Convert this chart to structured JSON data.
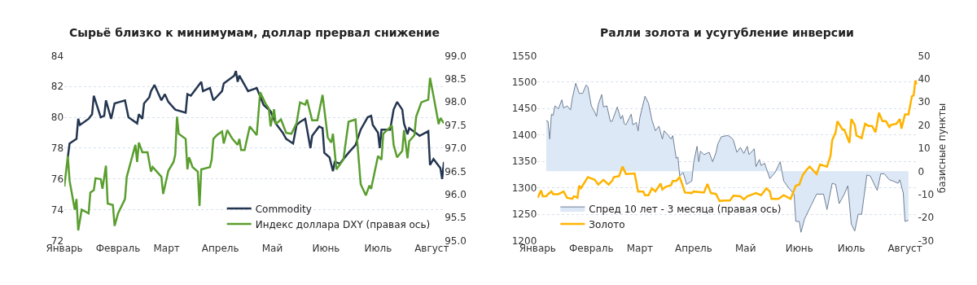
{
  "chart_data": [
    {
      "type": "line",
      "title": "Сырьё близко к минимумам, доллар прервал снижение",
      "categories": [
        "Январь",
        null,
        null,
        null,
        null,
        null,
        null,
        null,
        null,
        null,
        null,
        null,
        null,
        null,
        null,
        null,
        null,
        null,
        null,
        null,
        null,
        null,
        null,
        null,
        null,
        null,
        null,
        null,
        null,
        null,
        null,
        "Февраль",
        null,
        null,
        null,
        null,
        null,
        null,
        null,
        null,
        null,
        null,
        null,
        null,
        null,
        null,
        null,
        null,
        null,
        null,
        null,
        null,
        null,
        null,
        null,
        null,
        null,
        null,
        null,
        "Март",
        null,
        null,
        null,
        null,
        null,
        null,
        null,
        null,
        null,
        null,
        null,
        null,
        null,
        null,
        null,
        null,
        null,
        null,
        null,
        null,
        null,
        null,
        null,
        null,
        null,
        null,
        null,
        null,
        null,
        null,
        "Апрель",
        null,
        null,
        null,
        null,
        null,
        null,
        null,
        null,
        null,
        null,
        null,
        null,
        null,
        null,
        null,
        null,
        null,
        null,
        null,
        null,
        null,
        null,
        null,
        null,
        null,
        null,
        null,
        null,
        null,
        "Май",
        null,
        null,
        null,
        null,
        null,
        null,
        null,
        null,
        null,
        null,
        null,
        null,
        null,
        null,
        null,
        null,
        null,
        null,
        null,
        null,
        null,
        null,
        null,
        null,
        null,
        null,
        null,
        null,
        null,
        null,
        "Июнь",
        null,
        null,
        null,
        null,
        null,
        null,
        null,
        null,
        null,
        null,
        null,
        null,
        null,
        null,
        null,
        null,
        null,
        null,
        null,
        null,
        null,
        null,
        null,
        null,
        null,
        null,
        null,
        null,
        null,
        "Июль",
        null,
        null,
        null,
        null,
        null,
        null,
        null,
        null,
        null,
        null,
        null,
        null,
        null,
        null,
        null,
        null,
        null,
        null,
        null,
        null,
        null,
        null,
        null,
        null,
        null,
        null,
        null,
        null,
        null,
        null,
        "Август",
        null,
        null,
        null,
        null,
        null,
        null,
        null
      ],
      "ylim": [
        72,
        84
      ],
      "yticks": [
        72,
        74,
        76,
        78,
        80,
        82,
        84
      ],
      "y2lim": [
        95,
        99
      ],
      "y2ticks": [
        {
          "value": 95,
          "label": "95.0"
        },
        {
          "value": 95.5,
          "label": "95.5"
        },
        {
          "value": 96,
          "label": "96.0"
        },
        {
          "value": 96.5,
          "label": "96.5"
        },
        {
          "value": 97,
          "label": "97.0"
        },
        {
          "value": 97.5,
          "label": "97.5"
        },
        {
          "value": 98,
          "label": "98.0"
        },
        {
          "value": 98.5,
          "label": "98.5"
        },
        {
          "value": 99,
          "label": "99.0"
        }
      ],
      "grid": "y",
      "legend": "bottom right",
      "marker": "none",
      "line_style": "solid",
      "series": [
        {
          "name": "Commodity",
          "color": "#243550",
          "values": [
            null,
            null,
            77.4,
            78.3,
            null,
            null,
            null,
            78.6,
            79.9,
            79.5,
            null,
            null,
            null,
            null,
            79.9,
            null,
            80.2,
            81.4,
            null,
            null,
            null,
            80.0,
            null,
            80.1,
            81.1,
            null,
            null,
            79.9,
            null,
            80.9,
            null,
            null,
            81.0,
            null,
            null,
            81.1,
            null,
            80.0,
            null,
            null,
            null,
            null,
            79.6,
            80.2,
            null,
            79.9,
            80.9,
            null,
            null,
            81.3,
            81.7,
            null,
            82.1,
            null,
            null,
            null,
            81.1,
            null,
            81.5,
            null,
            81.0,
            null,
            null,
            null,
            80.5,
            null,
            null,
            null,
            null,
            null,
            80.3,
            81.5,
            null,
            81.4,
            null,
            null,
            null,
            null,
            null,
            82.3,
            81.7,
            null,
            null,
            null,
            81.9,
            null,
            81.1,
            null,
            null,
            null,
            null,
            81.7,
            82.2,
            null,
            null,
            null,
            null,
            null,
            82.7,
            83.0,
            82.3,
            82.7,
            null,
            null,
            null,
            null,
            81.7,
            null,
            null,
            null,
            null,
            81.9,
            null,
            null,
            null,
            80.8,
            null,
            null,
            null,
            80.4,
            null,
            null,
            79.6,
            null,
            null,
            null,
            79.0,
            null,
            78.6,
            null,
            null,
            null,
            78.3,
            null,
            79.5,
            null,
            79.7,
            null,
            null,
            79.9,
            null,
            null,
            78.0,
            78.8,
            null,
            null,
            null,
            79.4,
            null,
            79.3,
            77.7,
            null,
            null,
            77.4,
            null,
            76.5,
            77.1,
            null,
            null,
            77.0,
            null,
            null,
            null,
            null,
            77.7,
            null,
            null,
            null,
            78.2,
            null,
            null,
            79.2,
            null,
            null,
            null,
            80.0,
            null,
            80.1,
            79.5,
            null,
            null,
            79.0,
            78.0,
            79.2,
            null,
            null,
            null,
            null,
            79.2,
            null,
            80.5,
            null,
            81.0,
            null,
            null,
            80.5,
            79.6,
            null,
            78.9,
            79.3,
            null,
            null,
            null,
            null,
            null,
            78.8,
            null,
            null,
            null,
            null,
            79.1,
            76.9,
            null,
            77.3,
            null,
            null,
            null,
            76.7,
            76.0,
            77.1
          ]
        },
        {
          "name": "Индекс доллара DXY (правая ось)",
          "color": "#5a9e2f",
          "axis": "y2",
          "values": [
            96.17,
            null,
            96.83,
            96.3,
            null,
            null,
            95.67,
            95.9,
            95.22,
            null,
            95.67,
            null,
            null,
            null,
            95.59,
            96.04,
            null,
            96.09,
            96.35,
            null,
            null,
            96.33,
            96.12,
            null,
            96.62,
            95.8,
            null,
            null,
            95.77,
            95.32,
            null,
            95.59,
            null,
            null,
            null,
            95.9,
            96.38,
            null,
            null,
            null,
            null,
            97.07,
            96.7,
            97.12,
            null,
            96.91,
            null,
            null,
            96.91,
            null,
            96.49,
            96.59,
            null,
            null,
            null,
            null,
            96.38,
            96.01,
            96.17,
            null,
            96.51,
            null,
            null,
            96.7,
            96.86,
            97.68,
            97.31,
            null,
            null,
            null,
            97.2,
            96.54,
            96.8,
            null,
            96.59,
            null,
            null,
            96.49,
            95.75,
            96.54,
            null,
            null,
            null,
            null,
            96.59,
            96.75,
            97.2,
            null,
            97.28,
            null,
            null,
            97.36,
            97.1,
            null,
            97.39,
            null,
            null,
            97.2,
            null,
            null,
            97.07,
            97.2,
            96.96,
            null,
            96.96,
            null,
            null,
            97.47,
            null,
            null,
            null,
            97.28,
            null,
            98.21,
            null,
            null,
            97.97,
            null,
            97.86,
            97.47,
            null,
            97.84,
            97.52,
            null,
            null,
            97.62,
            null,
            null,
            97.33,
            null,
            null,
            97.31,
            null,
            null,
            97.54,
            null,
            97.99,
            null,
            null,
            97.94,
            98.05,
            null,
            null,
            97.6,
            null,
            null,
            97.6,
            null,
            null,
            98.15,
            null,
            null,
            97.23,
            null,
            97.12,
            97.31,
            null,
            96.54,
            null,
            null,
            null,
            96.75,
            null,
            null,
            97.57,
            null,
            null,
            null,
            97.62,
            null,
            null,
            96.22,
            null,
            null,
            95.98,
            null,
            96.19,
            96.12,
            null,
            null,
            null,
            96.83,
            null,
            96.75,
            97.31,
            null,
            null,
            null,
            null,
            97.49,
            97.07,
            null,
            96.8,
            null,
            null,
            96.94,
            97.39,
            null,
            96.78,
            97.15,
            null,
            null,
            97.28,
            97.68,
            null,
            null,
            97.99,
            null,
            null,
            null,
            98.05,
            98.52,
            null,
            98.13,
            null,
            null,
            97.52,
            97.65,
            null,
            97.54
          ]
        }
      ]
    },
    {
      "type": "line",
      "title": "Ралли золота и усугубление инверсии",
      "y2label": "базисные пункты",
      "categories": [
        "Январь",
        null,
        null,
        null,
        null,
        null,
        null,
        null,
        null,
        null,
        null,
        null,
        null,
        null,
        null,
        null,
        null,
        null,
        null,
        null,
        null,
        null,
        null,
        null,
        null,
        null,
        null,
        null,
        null,
        null,
        null,
        "Февраль",
        null,
        null,
        null,
        null,
        null,
        null,
        null,
        null,
        null,
        null,
        null,
        null,
        null,
        null,
        null,
        null,
        null,
        null,
        null,
        null,
        null,
        null,
        null,
        null,
        null,
        null,
        null,
        "Март",
        null,
        null,
        null,
        null,
        null,
        null,
        null,
        null,
        null,
        null,
        null,
        null,
        null,
        null,
        null,
        null,
        null,
        null,
        null,
        null,
        null,
        null,
        null,
        null,
        null,
        null,
        null,
        null,
        null,
        null,
        "Апрель",
        null,
        null,
        null,
        null,
        null,
        null,
        null,
        null,
        null,
        null,
        null,
        null,
        null,
        null,
        null,
        null,
        null,
        null,
        null,
        null,
        null,
        null,
        null,
        null,
        null,
        null,
        null,
        null,
        null,
        "Май",
        null,
        null,
        null,
        null,
        null,
        null,
        null,
        null,
        null,
        null,
        null,
        null,
        null,
        null,
        null,
        null,
        null,
        null,
        null,
        null,
        null,
        null,
        null,
        null,
        null,
        null,
        null,
        null,
        null,
        null,
        "Июнь",
        null,
        null,
        null,
        null,
        null,
        null,
        null,
        null,
        null,
        null,
        null,
        null,
        null,
        null,
        null,
        null,
        null,
        null,
        null,
        null,
        null,
        null,
        null,
        null,
        null,
        null,
        null,
        null,
        null,
        "Июль",
        null,
        null,
        null,
        null,
        null,
        null,
        null,
        null,
        null,
        null,
        null,
        null,
        null,
        null,
        null,
        null,
        null,
        null,
        null,
        null,
        null,
        null,
        null,
        null,
        null,
        null,
        null,
        null,
        null,
        null,
        "Август",
        null,
        null,
        null,
        null,
        null,
        null,
        null
      ],
      "ylim": [
        1200,
        1550
      ],
      "yticks": [
        1200,
        1250,
        1300,
        1350,
        1400,
        1450,
        1500,
        1550
      ],
      "y2lim": [
        -30,
        50
      ],
      "y2ticks": [
        -30,
        -20,
        -10,
        0,
        10,
        20,
        30,
        40,
        50
      ],
      "grid": "y",
      "legend": "bottom left",
      "marker": "none",
      "line_style": "solid",
      "series": [
        {
          "name": "Спред 10 лет - 3 месяца (правая ось)",
          "type": "area",
          "color": "#dce8f5",
          "axis": "y2",
          "values": [
            null,
            null,
            null,
            null,
            null,
            21.8,
            21.6,
            13.9,
            24.7,
            24.2,
            28.3,
            null,
            27.0,
            null,
            30.9,
            27.3,
            null,
            28.3,
            null,
            26.5,
            31.4,
            null,
            38.1,
            null,
            33.7,
            null,
            33.7,
            null,
            37.3,
            36.6,
            null,
            28.3,
            null,
            25.5,
            23.7,
            28.9,
            null,
            33.2,
            27.8,
            null,
            28.3,
            null,
            21.6,
            21.6,
            null,
            null,
            27.8,
            null,
            22.6,
            24.2,
            20.6,
            20.1,
            null,
            null,
            24.7,
            20.1,
            null,
            21.1,
            17.5,
            23.2,
            null,
            null,
            32.5,
            null,
            29.4,
            null,
            22.1,
            null,
            17.5,
            null,
            19.5,
            null,
            13.9,
            17.5,
            null,
            15.9,
            null,
            13.9,
            15.4,
            null,
            5.6,
            6.1,
            -2.1,
            null,
            -0.6,
            null,
            -5.7,
            null,
            null,
            -4.2,
            3.5,
            null,
            10.8,
            4.1,
            8.7,
            null,
            7.2,
            null,
            null,
            8.2,
            null,
            4.1,
            null,
            8.2,
            11.8,
            null,
            14.9,
            null,
            null,
            15.4,
            15.4,
            null,
            14.4,
            13.4,
            null,
            8.2,
            null,
            10.3,
            null,
            7.7,
            null,
            10.8,
            7.2,
            null,
            null,
            9.7,
            2.0,
            null,
            5.1,
            2.5,
            null,
            3.5,
            null,
            null,
            -3.2,
            null,
            null,
            -0.6,
            null,
            null,
            4.1,
            null,
            -4.2,
            null,
            null,
            -7.3,
            null,
            null,
            -9.9,
            -21.7,
            null,
            -21.7,
            -26.4,
            null,
            -20.7,
            null,
            null,
            null,
            -14.5,
            null,
            null,
            -9.9,
            null,
            null,
            null,
            -9.9,
            null,
            -16.6,
            null,
            null,
            -5.2,
            null,
            -5.7,
            null,
            -14.0,
            null,
            null,
            -9.9,
            null,
            -6.3,
            null,
            -22.8,
            null,
            -25.9,
            null,
            -18.6,
            null,
            -18.6,
            null,
            null,
            -1.6,
            null,
            -2.1,
            null,
            null,
            null,
            -8.3,
            null,
            -1.1,
            null,
            -1.1,
            null,
            null,
            -3.7,
            null,
            -4.2,
            null,
            null,
            -5.2,
            -3.7,
            null,
            -9.4,
            -21.7,
            null,
            -21.2,
            null,
            null,
            null,
            null,
            null
          ]
        },
        {
          "name": "Золото",
          "color": "#ffb300",
          "values": [
            1281,
            null,
            1295,
            1284,
            null,
            1284,
            1288,
            null,
            1293,
            1288,
            null,
            null,
            1288,
            null,
            null,
            1293,
            null,
            1281,
            null,
            null,
            1279,
            1284,
            null,
            1281,
            1304,
            1299,
            null,
            null,
            null,
            1320,
            null,
            null,
            null,
            1315,
            null,
            1306,
            null,
            null,
            1315,
            null,
            null,
            1306,
            null,
            1313,
            1320,
            null,
            null,
            1322,
            null,
            1340,
            null,
            1326,
            null,
            null,
            null,
            null,
            1327,
            null,
            1293,
            null,
            null,
            1293,
            1286,
            null,
            1286,
            null,
            1299,
            null,
            1293,
            null,
            null,
            1308,
            1297,
            null,
            1302,
            null,
            null,
            1305,
            1313,
            null,
            1313,
            null,
            1320,
            1311,
            null,
            1291,
            null,
            null,
            null,
            1290,
            1293,
            null,
            null,
            null,
            null,
            null,
            1291,
            null,
            1307,
            null,
            1290,
            null,
            null,
            1288,
            null,
            1275,
            null,
            null,
            1276,
            null,
            null,
            1276,
            null,
            1285,
            null,
            null,
            null,
            1284,
            null,
            1278,
            null,
            1284,
            null,
            null,
            null,
            null,
            1290,
            null,
            null,
            1286,
            null,
            null,
            1299,
            null,
            1293,
            1279,
            null,
            null,
            null,
            1279,
            null,
            null,
            1286,
            null,
            null,
            null,
            1279,
            null,
            null,
            1304,
            null,
            1306,
            null,
            1324,
            null,
            1333,
            null,
            1340,
            null,
            null,
            null,
            1326,
            null,
            1344,
            null,
            null,
            null,
            1340,
            null,
            1360,
            1390,
            null,
            1405,
            1426,
            null,
            null,
            1410,
            1410,
            null,
            null,
            1385,
            1430,
            null,
            1419,
            1399,
            null,
            null,
            1394,
            null,
            1421,
            null,
            1417,
            null,
            1417,
            null,
            1405,
            null,
            1442,
            null,
            1426,
            null,
            1426,
            null,
            1415,
            1419,
            null,
            null,
            1421,
            null,
            1430,
            1412,
            null,
            1439,
            null,
            1439,
            null,
            1473,
            1475,
            1503,
            1496
          ]
        }
      ]
    }
  ]
}
